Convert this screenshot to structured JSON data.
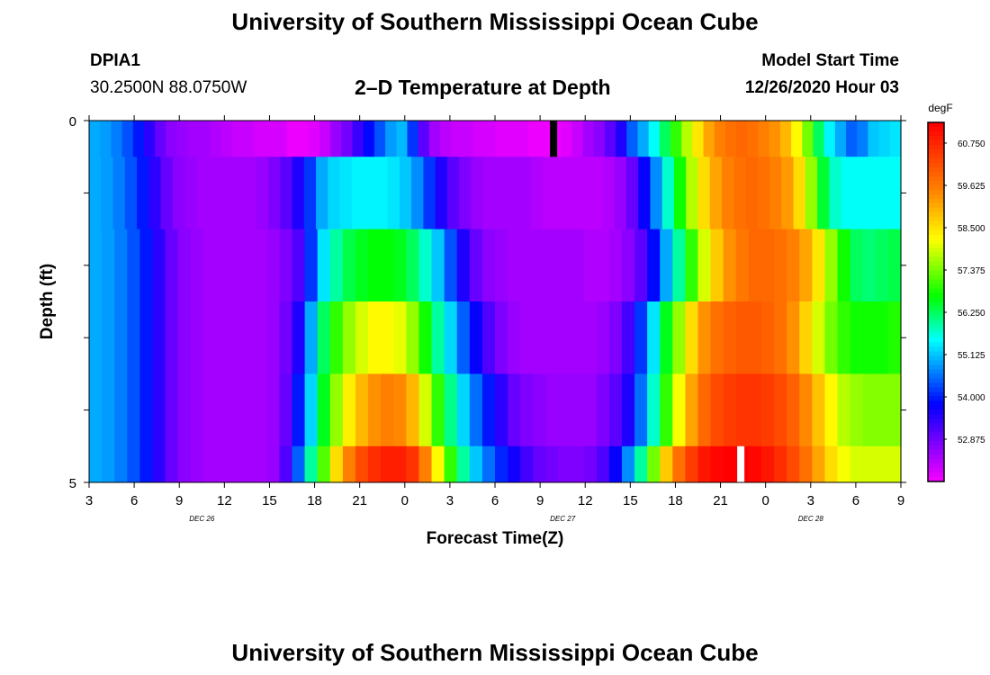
{
  "header": {
    "title_top": "University of Southern Mississippi Ocean Cube",
    "station_id": "DPIA1",
    "station_coords": "30.2500N 88.0750W",
    "chart_title": "2–D Temperature at Depth",
    "model_label": "Model Start Time",
    "model_time": "12/26/2020 Hour 03"
  },
  "footer": {
    "title_bottom": "University of Southern Mississippi Ocean Cube"
  },
  "chart_data": {
    "type": "heatmap",
    "title": "2–D Temperature at Depth",
    "xlabel": "Forecast Time(Z)",
    "ylabel": "Depth (ft)",
    "y_ticks": [
      "0",
      "5"
    ],
    "ylim": [
      0,
      5
    ],
    "x_tick_labels": [
      "3",
      "6",
      "9",
      "12",
      "15",
      "18",
      "21",
      "0",
      "3",
      "6",
      "9",
      "12",
      "15",
      "18",
      "21",
      "0",
      "3",
      "6",
      "9"
    ],
    "date_labels": [
      {
        "text": "DEC 26",
        "at_index": 2.5
      },
      {
        "text": "DEC 27",
        "at_index": 10.5
      },
      {
        "text": "DEC 28",
        "at_index": 16
      }
    ],
    "colorbar": {
      "unit": "degF",
      "min": 51.75,
      "max": 61.3,
      "tick_labels": [
        "60.750",
        "59.625",
        "58.500",
        "57.375",
        "56.250",
        "55.125",
        "54.000",
        "52.875"
      ]
    },
    "rows": [
      {
        "depth_band": "0.0–0.5",
        "values": [
          55.0,
          54.9,
          54.7,
          54.4,
          54.0,
          53.5,
          53.0,
          52.7,
          52.6,
          52.5,
          52.5,
          52.4,
          52.3,
          52.2,
          52.2,
          52.1,
          52.1,
          52.1,
          51.9,
          51.9,
          52.0,
          52.2,
          52.6,
          52.9,
          53.4,
          53.9,
          54.4,
          54.9,
          55.1,
          54.2,
          53.1,
          52.5,
          52.3,
          52.2,
          52.2,
          52.1,
          52.1,
          52.0,
          52.0,
          52.0,
          51.9,
          51.9,
          51.9,
          52.0,
          52.2,
          52.5,
          52.7,
          53.1,
          53.6,
          54.5,
          55.0,
          55.6,
          56.3,
          57.0,
          57.8,
          58.5,
          59.2,
          59.6,
          59.8,
          59.9,
          59.8,
          59.6,
          59.4,
          59.0,
          58.3,
          57.4,
          56.3,
          55.5,
          55.0,
          54.5,
          54.7,
          55.2,
          55.3,
          55.4
        ]
      },
      {
        "depth_band": "0.5–1.5",
        "values": [
          55.0,
          54.9,
          54.7,
          54.4,
          54.0,
          53.5,
          53.0,
          52.7,
          52.6,
          52.5,
          52.5,
          52.5,
          52.5,
          52.5,
          52.6,
          52.8,
          53.1,
          53.6,
          54.2,
          55.0,
          55.3,
          55.4,
          55.5,
          55.5,
          55.5,
          55.4,
          55.2,
          54.8,
          54.2,
          53.6,
          53.1,
          52.8,
          52.6,
          52.5,
          52.5,
          52.5,
          52.5,
          52.4,
          52.3,
          52.3,
          52.3,
          52.3,
          52.3,
          52.4,
          52.6,
          53.0,
          53.8,
          54.8,
          55.8,
          56.8,
          57.8,
          58.6,
          59.2,
          59.6,
          59.8,
          59.9,
          59.8,
          59.6,
          59.3,
          58.6,
          57.6,
          56.5,
          55.8,
          55.6,
          55.6,
          55.6,
          55.6,
          55.6
        ]
      },
      {
        "depth_band": "1.5–2.5",
        "values": [
          55.0,
          54.9,
          54.7,
          54.4,
          54.0,
          53.5,
          53.0,
          52.7,
          52.6,
          52.5,
          52.5,
          52.5,
          52.5,
          52.5,
          52.6,
          52.8,
          53.2,
          54.2,
          55.4,
          56.0,
          56.4,
          56.6,
          56.7,
          56.7,
          56.6,
          56.3,
          55.8,
          55.2,
          54.4,
          53.6,
          53.0,
          52.7,
          52.6,
          52.5,
          52.5,
          52.5,
          52.5,
          52.5,
          52.5,
          52.4,
          52.4,
          52.5,
          52.7,
          53.1,
          53.9,
          55.0,
          56.0,
          57.0,
          58.0,
          58.8,
          59.4,
          59.7,
          59.9,
          59.9,
          59.8,
          59.6,
          59.2,
          58.5,
          57.6,
          56.8,
          56.3,
          56.2,
          56.3,
          56.4
        ]
      },
      {
        "depth_band": "2.5–3.5",
        "values": [
          55.0,
          54.9,
          54.7,
          54.4,
          54.0,
          53.5,
          53.0,
          52.7,
          52.6,
          52.5,
          52.5,
          52.5,
          52.5,
          52.5,
          52.6,
          52.9,
          53.6,
          55.0,
          56.3,
          57.0,
          57.6,
          58.0,
          58.3,
          58.3,
          58.1,
          57.6,
          56.8,
          56.0,
          55.3,
          54.5,
          53.8,
          53.2,
          52.8,
          52.6,
          52.5,
          52.5,
          52.5,
          52.5,
          52.5,
          52.5,
          52.6,
          52.8,
          53.3,
          54.2,
          55.4,
          56.6,
          57.6,
          58.6,
          59.4,
          59.8,
          60.0,
          60.1,
          60.1,
          60.0,
          59.8,
          59.4,
          58.7,
          58.0,
          57.4,
          57.0,
          56.8,
          56.8,
          56.8,
          56.9
        ]
      },
      {
        "depth_band": "3.5–4.5",
        "values": [
          55.0,
          54.9,
          54.7,
          54.4,
          54.0,
          53.5,
          53.0,
          52.7,
          52.6,
          52.5,
          52.5,
          52.5,
          52.5,
          52.5,
          52.6,
          53.0,
          54.0,
          55.3,
          56.6,
          57.6,
          58.4,
          59.0,
          59.4,
          59.6,
          59.5,
          59.0,
          58.0,
          57.0,
          56.1,
          55.3,
          54.6,
          54.0,
          53.5,
          53.0,
          52.8,
          52.7,
          52.6,
          52.6,
          52.6,
          52.6,
          52.8,
          53.1,
          53.6,
          54.6,
          55.8,
          57.0,
          58.2,
          59.2,
          59.9,
          60.3,
          60.5,
          60.6,
          60.6,
          60.5,
          60.3,
          60.0,
          59.5,
          58.9,
          58.3,
          57.8,
          57.6,
          57.5,
          57.5,
          57.5
        ]
      },
      {
        "depth_band": "4.5–5.0",
        "values": [
          55.0,
          54.9,
          54.7,
          54.4,
          54.0,
          53.5,
          53.0,
          52.7,
          52.6,
          52.5,
          52.5,
          52.5,
          52.5,
          52.5,
          52.6,
          53.2,
          54.5,
          56.0,
          57.2,
          58.6,
          59.6,
          60.3,
          60.7,
          60.9,
          60.9,
          60.6,
          59.6,
          58.3,
          57.0,
          56.0,
          55.2,
          54.6,
          54.1,
          53.7,
          53.3,
          53.0,
          52.9,
          52.8,
          52.8,
          52.9,
          53.2,
          53.8,
          54.8,
          56.0,
          57.4,
          58.8,
          59.8,
          60.5,
          61.0,
          61.2,
          61.3,
          61.3,
          61.2,
          61.0,
          60.7,
          60.3,
          59.8,
          59.2,
          58.6,
          58.2,
          58.0,
          58.0,
          58.0,
          58.0
        ]
      }
    ],
    "markers": [
      {
        "color": "#000000",
        "x_index": 10.3,
        "depth_start": 0,
        "depth_end": 0.5
      },
      {
        "color": "#ffffff",
        "x_index": 14.45,
        "depth_start": 4.5,
        "depth_end": 5.0
      }
    ]
  }
}
